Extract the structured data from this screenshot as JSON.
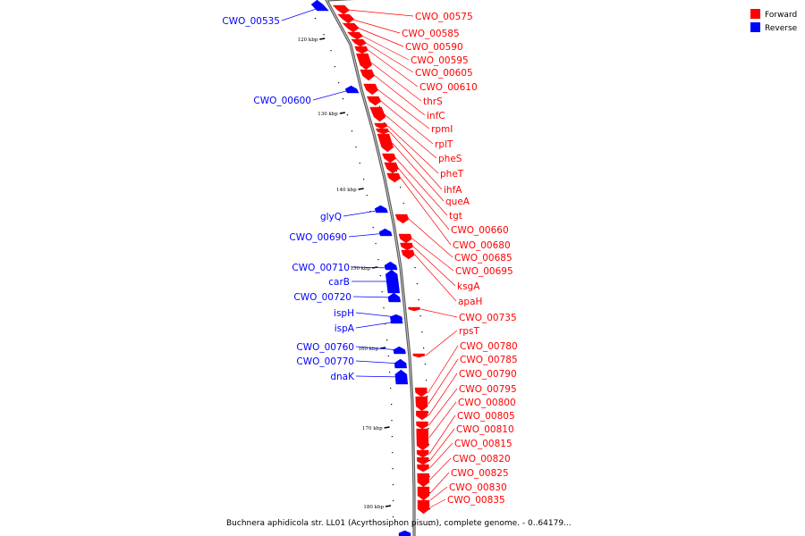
{
  "caption": "Buchnera aphidicola str. LL01 (Acyrthosiphon pisum), complete genome. - 0..64179...",
  "legend": [
    {
      "label": "Forward",
      "color": "#ff0000"
    },
    {
      "label": "Reverse",
      "color": "#0000ff"
    }
  ],
  "colors": {
    "forward": "#ff0000",
    "reverse": "#0000ff",
    "backbone": "#888888"
  },
  "scale_ticks": [
    "120 kbp",
    "130 kbp",
    "140 kbp",
    "150 kbp",
    "160 kbp",
    "170 kbp",
    "180 kbp"
  ],
  "reverse_labels": [
    "CWO_00535",
    "CWO_00600",
    "glyQ",
    "CWO_00690",
    "CWO_00710",
    "carB",
    "CWO_00720",
    "ispH",
    "ispA",
    "CWO_00760",
    "CWO_00770",
    "dnaK"
  ],
  "forward_labels": [
    "CWO_00575",
    "CWO_00585",
    "CWO_00590",
    "CWO_00595",
    "CWO_00605",
    "CWO_00610",
    "thrS",
    "infC",
    "rpmI",
    "rplT",
    "pheS",
    "pheT",
    "ihfA",
    "queA",
    "tgt",
    "CWO_00660",
    "CWO_00680",
    "CWO_00685",
    "CWO_00695",
    "ksgA",
    "apaH",
    "CWO_00735",
    "rpsT",
    "CWO_00780",
    "CWO_00785",
    "CWO_00790",
    "CWO_00795",
    "CWO_00800",
    "CWO_00805",
    "CWO_00810",
    "CWO_00815",
    "CWO_00820",
    "CWO_00825",
    "CWO_00830",
    "CWO_00835"
  ]
}
